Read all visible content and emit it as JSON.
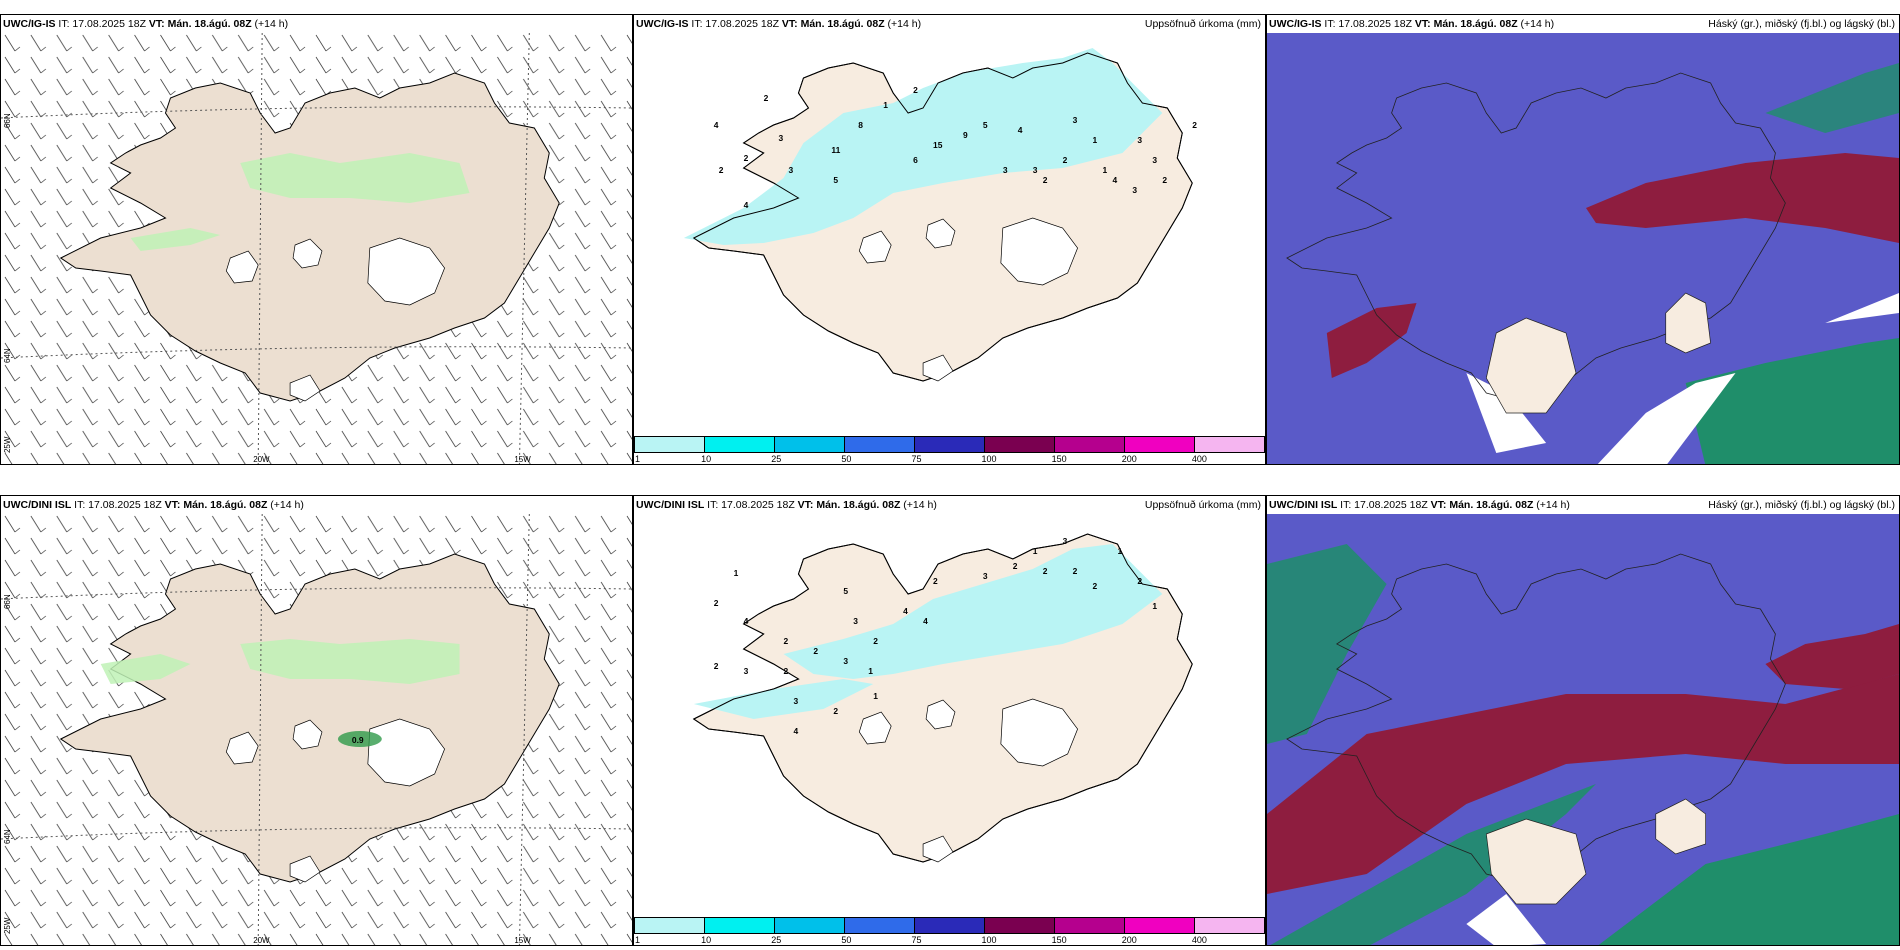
{
  "colors": {
    "land": "#ecdfd1",
    "land_precip": "#f7ece0",
    "precip_light": "#b9f4f4",
    "wind_green": "#bff2b6",
    "wind_green_dark": "#2f9a4a",
    "sat_blue": "#5a5ac8",
    "sat_red": "#8e1d3f",
    "sat_green": "#1f8e6a"
  },
  "panels": [
    {
      "model": "UWC/IG-IS",
      "it": "IT: 17.08.2025 18Z",
      "vt": "VT: Mán. 18.ágú. 08Z",
      "lead": "(+14 h)",
      "right_title": ""
    },
    {
      "model": "UWC/IG-IS",
      "it": "IT: 17.08.2025 18Z",
      "vt": "VT: Mán. 18.ágú. 08Z",
      "lead": "(+14 h)",
      "right_title": "Uppsöfnuð úrkoma (mm)"
    },
    {
      "model": "UWC/IG-IS",
      "it": "IT: 17.08.2025 18Z",
      "vt": "VT: Mán. 18.ágú. 08Z",
      "lead": "(+14 h)",
      "right_title": "Háský (gr.), miðský (fj.bl.) og lágský (bl.)"
    },
    {
      "model": "UWC/DINI ISL",
      "it": "IT: 17.08.2025 18Z",
      "vt": "VT: Mán. 18.ágú. 08Z",
      "lead": "(+14 h)",
      "right_title": ""
    },
    {
      "model": "UWC/DINI ISL",
      "it": "IT: 17.08.2025 18Z",
      "vt": "VT: Mán. 18.ágú. 08Z",
      "lead": "(+14 h)",
      "right_title": "Uppsöfnuð úrkoma (mm)"
    },
    {
      "model": "UWC/DINI ISL",
      "it": "IT: 17.08.2025 18Z",
      "vt": "VT: Mán. 18.ágú. 08Z",
      "lead": "(+14 h)",
      "right_title": "Háský (gr.), miðský (fj.bl.) og lágský (bl.)"
    }
  ],
  "grid_labels": {
    "lon_20w": "20W",
    "lon_15w": "15W",
    "lat_66n": "66N",
    "lat_64n": "64N",
    "lon_25w": "25W"
  },
  "wind_max_label": "0.9",
  "colorbar": {
    "colors": [
      "#b9f4f4",
      "#00f0f0",
      "#00c0ea",
      "#2f6bea",
      "#2a2ab8",
      "#7a0050",
      "#b5008e",
      "#f000c0",
      "#f5b5f0"
    ],
    "ticks": [
      "1",
      "10",
      "25",
      "50",
      "75",
      "100",
      "150",
      "200",
      "400"
    ]
  },
  "precip_top": [
    {
      "v": "2"
    },
    {
      "v": "4"
    },
    {
      "v": "3"
    },
    {
      "v": "2"
    },
    {
      "v": "2"
    },
    {
      "v": "3"
    },
    {
      "v": "4"
    },
    {
      "v": "5"
    },
    {
      "v": "8"
    },
    {
      "v": "11"
    },
    {
      "v": "15"
    },
    {
      "v": "9"
    },
    {
      "v": "5"
    },
    {
      "v": "4"
    },
    {
      "v": "6"
    },
    {
      "v": "3"
    },
    {
      "v": "3"
    },
    {
      "v": "2"
    },
    {
      "v": "2"
    },
    {
      "v": "1"
    },
    {
      "v": "3"
    },
    {
      "v": "2"
    },
    {
      "v": "1"
    },
    {
      "v": "1"
    },
    {
      "v": "3"
    },
    {
      "v": "4"
    },
    {
      "v": "3"
    },
    {
      "v": "2"
    },
    {
      "v": "3"
    },
    {
      "v": "2"
    }
  ],
  "precip_bottom": [
    {
      "v": "1"
    },
    {
      "v": "2"
    },
    {
      "v": "4"
    },
    {
      "v": "5"
    },
    {
      "v": "3"
    },
    {
      "v": "2"
    },
    {
      "v": "4"
    },
    {
      "v": "4"
    },
    {
      "v": "2"
    },
    {
      "v": "3"
    },
    {
      "v": "2"
    },
    {
      "v": "1"
    },
    {
      "v": "2"
    },
    {
      "v": "3"
    },
    {
      "v": "2"
    },
    {
      "v": "2"
    },
    {
      "v": "1"
    },
    {
      "v": "2"
    },
    {
      "v": "1"
    },
    {
      "v": "2"
    },
    {
      "v": "3"
    },
    {
      "v": "2"
    },
    {
      "v": "3"
    },
    {
      "v": "4"
    },
    {
      "v": "2"
    },
    {
      "v": "1"
    },
    {
      "v": "2"
    },
    {
      "v": "2"
    },
    {
      "v": "3"
    },
    {
      "v": "1"
    }
  ]
}
